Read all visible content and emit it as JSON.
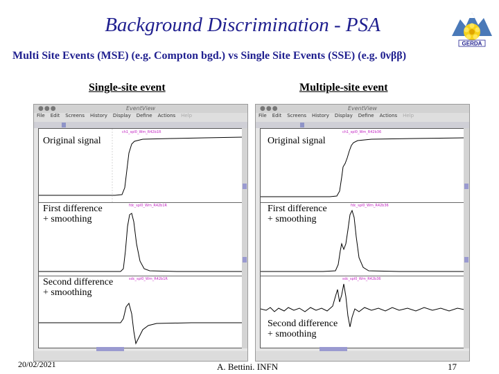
{
  "title": "Background Discrimination - PSA",
  "subtitle": "Multi Site Events (MSE) (e.g. Compton bgd.) vs Single Site Events (SSE) (e.g. 0νββ)",
  "logo": {
    "icon": "gerda-logo-icon",
    "text": "GERDA"
  },
  "columns": [
    {
      "heading": "Single-site event",
      "window": {
        "title": "EventView",
        "menu": [
          "File",
          "Edit",
          "Screens",
          "History",
          "Display",
          "Define",
          "Actions",
          "Help"
        ],
        "panels": [
          {
            "label": "Original signal",
            "hist": "ch1_spl0_Wm_R42b1R"
          },
          {
            "label": "First difference\n+ smoothing",
            "hist": "fdc_spl0_Wm_R42b1R"
          },
          {
            "label": "Second difference\n+ smoothing",
            "hist": "sdc_spl0_Wm_R42b1R"
          }
        ]
      }
    },
    {
      "heading": "Multiple-site event",
      "window": {
        "title": "EventView",
        "menu": [
          "File",
          "Edit",
          "Screens",
          "History",
          "Display",
          "Define",
          "Actions",
          "Help"
        ],
        "panels": [
          {
            "label": "Original signal",
            "hist": "ch1_spl0_Wm_R42b36"
          },
          {
            "label": "First difference\n+ smoothing",
            "hist": "fdc_spl0_Wm_R42b36"
          },
          {
            "label": "Second difference\n+ smoothing",
            "hist": "sdc_spl0_Wm_R42b36"
          }
        ]
      }
    }
  ],
  "footer": {
    "date": "20/02/2021",
    "author": "A. Bettini. INFN",
    "page": "17"
  }
}
